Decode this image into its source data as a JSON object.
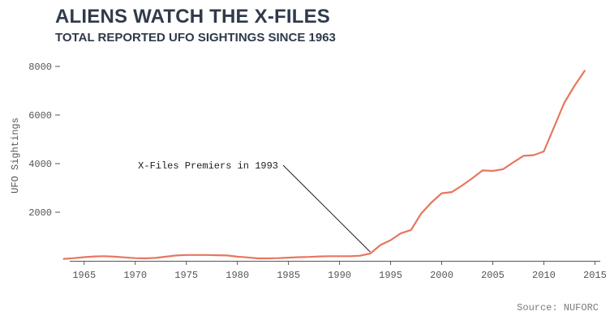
{
  "chart_data": {
    "type": "line",
    "title": "ALIENS WATCH THE X-FILES",
    "subtitle": "TOTAL REPORTED UFO SIGHTINGS SINCE 1963",
    "xlabel": "",
    "ylabel": "UFO Sightings",
    "source": "Source: NUFORC",
    "xlim": [
      1962,
      2016
    ],
    "ylim": [
      0,
      8400
    ],
    "x_ticks": [
      1965,
      1970,
      1975,
      1980,
      1985,
      1990,
      1995,
      2000,
      2005,
      2010,
      2015
    ],
    "y_ticks": [
      2000,
      4000,
      6000,
      8000
    ],
    "grid": false,
    "line_color": "#e8765f",
    "annotation": {
      "text": "X-Files Premiers in 1993",
      "x": 1993,
      "y": 300
    },
    "x": [
      1963,
      1964,
      1965,
      1966,
      1967,
      1968,
      1969,
      1970,
      1971,
      1972,
      1973,
      1974,
      1975,
      1976,
      1977,
      1978,
      1979,
      1980,
      1981,
      1982,
      1983,
      1984,
      1985,
      1986,
      1987,
      1988,
      1989,
      1990,
      1991,
      1992,
      1993,
      1994,
      1995,
      1996,
      1997,
      1998,
      1999,
      2000,
      2001,
      2002,
      2003,
      2004,
      2005,
      2006,
      2007,
      2008,
      2009,
      2010,
      2011,
      2012,
      2013,
      2014
    ],
    "y": [
      80,
      110,
      150,
      180,
      190,
      170,
      140,
      110,
      100,
      120,
      170,
      220,
      240,
      240,
      240,
      230,
      220,
      170,
      140,
      100,
      100,
      110,
      130,
      150,
      160,
      180,
      190,
      190,
      190,
      210,
      300,
      650,
      850,
      1130,
      1270,
      1950,
      2400,
      2780,
      2830,
      3100,
      3400,
      3720,
      3700,
      3770,
      4050,
      4320,
      4350,
      4500,
      5500,
      6500,
      7200,
      7820
    ]
  }
}
